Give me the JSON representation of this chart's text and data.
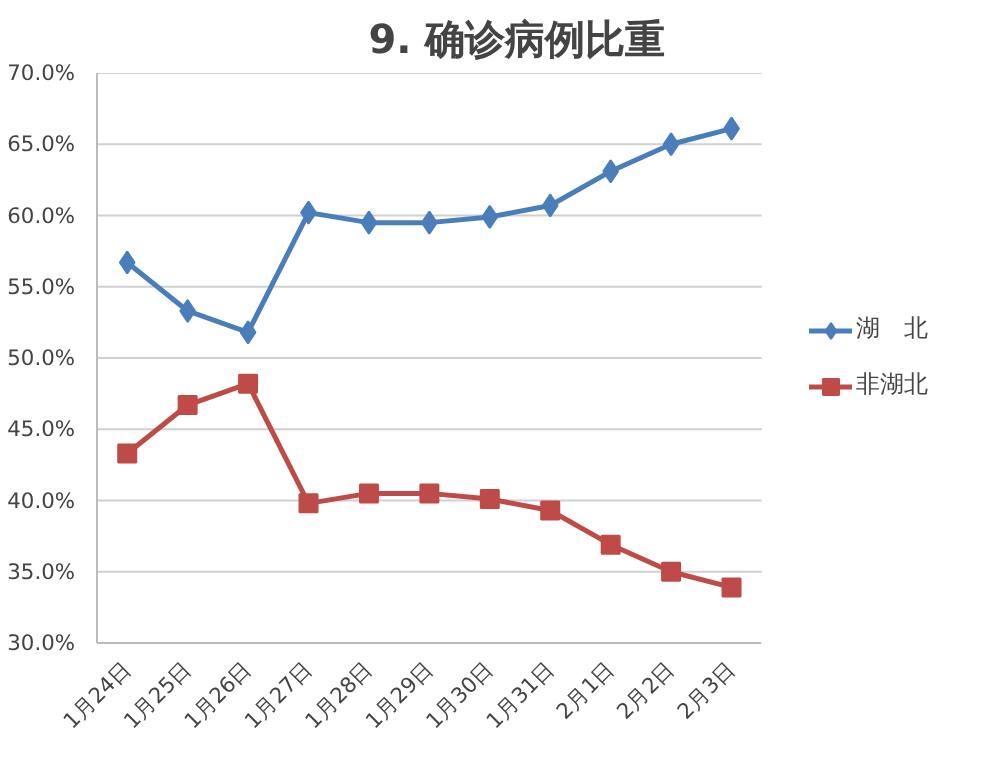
{
  "chart_data": {
    "type": "line",
    "title": "9. 确诊病例比重",
    "categories": [
      "1月24日",
      "1月25日",
      "1月26日",
      "1月27日",
      "1月28日",
      "1月29日",
      "1月30日",
      "1月31日",
      "2月1日",
      "2月2日",
      "2月3日"
    ],
    "series": [
      {
        "name": "湖　北",
        "color": "#4a7ebb",
        "marker": "diamond",
        "values": [
          56.7,
          53.3,
          51.8,
          60.2,
          59.5,
          59.5,
          59.9,
          60.7,
          63.1,
          65.0,
          66.1
        ]
      },
      {
        "name": "非湖北",
        "color": "#be4b48",
        "marker": "square",
        "values": [
          43.3,
          46.7,
          48.2,
          39.8,
          40.5,
          40.5,
          40.1,
          39.3,
          36.9,
          35.0,
          33.9
        ]
      }
    ],
    "ylim": [
      30,
      70
    ],
    "yticks": [
      {
        "value": 30,
        "label": "30.0%"
      },
      {
        "value": 35,
        "label": "35.0%"
      },
      {
        "value": 40,
        "label": "40.0%"
      },
      {
        "value": 45,
        "label": "45.0%"
      },
      {
        "value": 50,
        "label": "50.0%"
      },
      {
        "value": 55,
        "label": "55.0%"
      },
      {
        "value": 60,
        "label": "60.0%"
      },
      {
        "value": 65,
        "label": "65.0%"
      },
      {
        "value": 70,
        "label": "70.0%"
      }
    ],
    "grid": "y",
    "legend": "right",
    "line_style": "solid"
  }
}
